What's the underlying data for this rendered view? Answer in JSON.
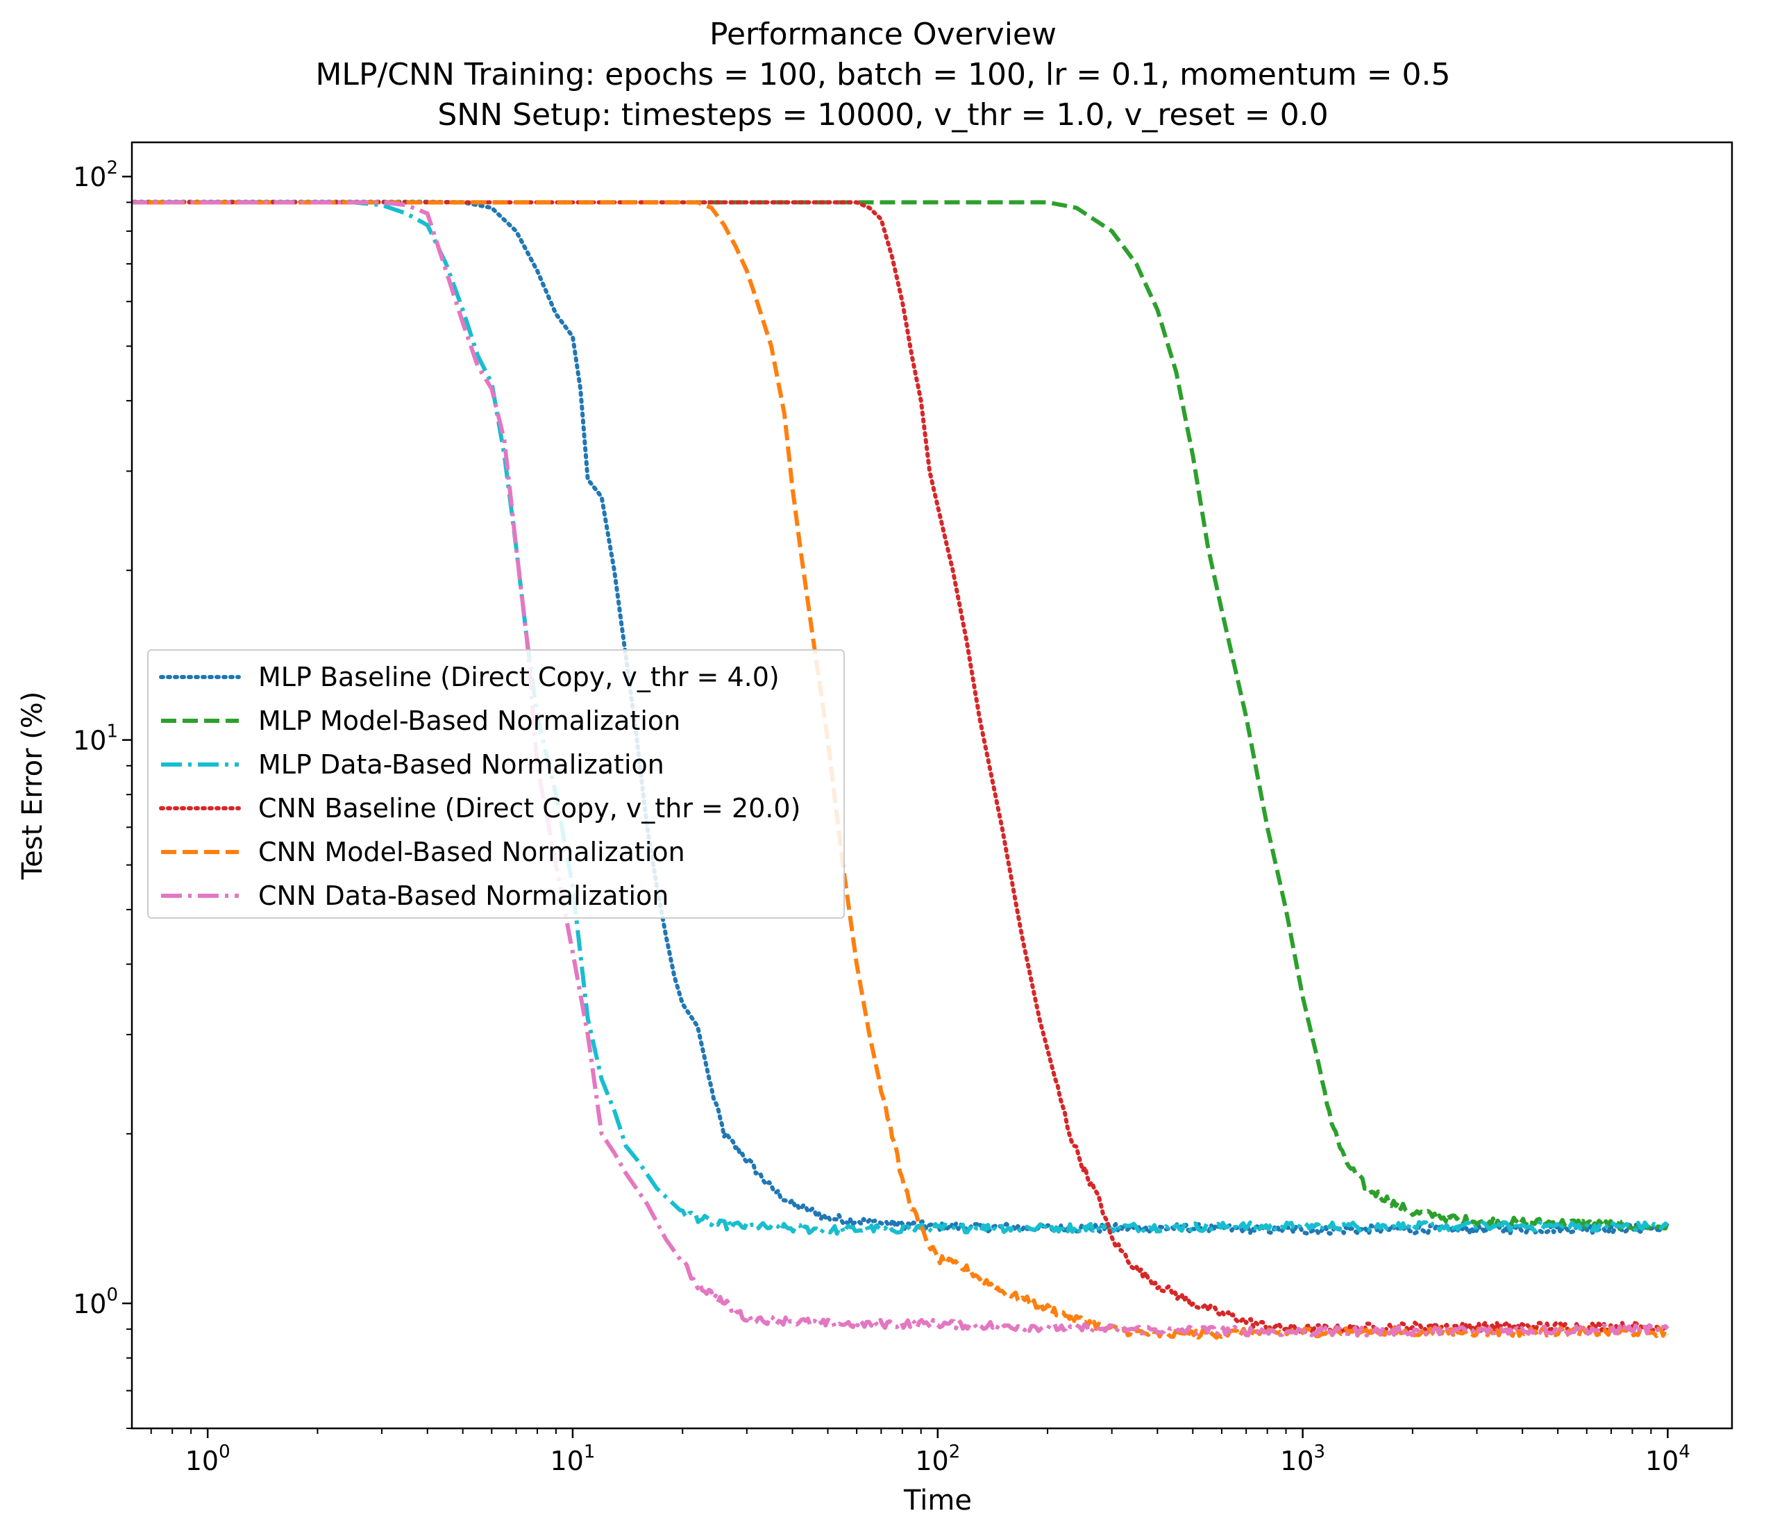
{
  "chart_data": {
    "type": "line",
    "title": "Performance Overview",
    "subtitle_lines": [
      "MLP/CNN Training: epochs = 100, batch = 100, lr = 0.1, momentum = 0.5",
      "SNN Setup: timesteps = 10000, v_thr = 1.0, v_reset = 0.0"
    ],
    "xlabel": "Time",
    "ylabel": "Test Error (%)",
    "xscale": "log",
    "yscale": "log",
    "xlim": [
      0.62,
      15000
    ],
    "ylim": [
      0.6,
      115
    ],
    "xticks": [
      {
        "value": 1,
        "label": "10^0"
      },
      {
        "value": 10,
        "label": "10^1"
      },
      {
        "value": 100,
        "label": "10^2"
      },
      {
        "value": 1000,
        "label": "10^3"
      },
      {
        "value": 10000,
        "label": "10^4"
      }
    ],
    "yticks": [
      {
        "value": 1,
        "label": "10^0"
      },
      {
        "value": 10,
        "label": "10^1"
      },
      {
        "value": 100,
        "label": "10^2"
      }
    ],
    "grid": false,
    "legend_position": "center-left",
    "series": [
      {
        "name": "MLP Baseline (Direct Copy, v_thr = 4.0)",
        "color": "#1f77b4",
        "style": "dotted",
        "points": [
          [
            0.6,
            90.2
          ],
          [
            4,
            90.2
          ],
          [
            5,
            90
          ],
          [
            6,
            88
          ],
          [
            7,
            80
          ],
          [
            8,
            68
          ],
          [
            9,
            57
          ],
          [
            10,
            52
          ],
          [
            10.5,
            42
          ],
          [
            11,
            29
          ],
          [
            12,
            27
          ],
          [
            13,
            20
          ],
          [
            14,
            14
          ],
          [
            15,
            10
          ],
          [
            16,
            7
          ],
          [
            17,
            5.5
          ],
          [
            18,
            4.5
          ],
          [
            19,
            3.8
          ],
          [
            20,
            3.4
          ],
          [
            22,
            3.1
          ],
          [
            24,
            2.4
          ],
          [
            26,
            2.0
          ],
          [
            30,
            1.8
          ],
          [
            35,
            1.6
          ],
          [
            40,
            1.5
          ],
          [
            50,
            1.42
          ],
          [
            60,
            1.4
          ],
          [
            80,
            1.38
          ],
          [
            100,
            1.37
          ],
          [
            200,
            1.36
          ],
          [
            500,
            1.36
          ],
          [
            1000,
            1.35
          ],
          [
            10000,
            1.36
          ]
        ]
      },
      {
        "name": "MLP Model-Based Normalization",
        "color": "#2ca02c",
        "style": "dashed",
        "points": [
          [
            0.6,
            90
          ],
          [
            200,
            90
          ],
          [
            240,
            88
          ],
          [
            300,
            80
          ],
          [
            350,
            70
          ],
          [
            400,
            58
          ],
          [
            450,
            45
          ],
          [
            500,
            32
          ],
          [
            550,
            22
          ],
          [
            600,
            17
          ],
          [
            700,
            11
          ],
          [
            800,
            7
          ],
          [
            900,
            5
          ],
          [
            1000,
            3.5
          ],
          [
            1100,
            2.7
          ],
          [
            1200,
            2.1
          ],
          [
            1300,
            1.8
          ],
          [
            1500,
            1.6
          ],
          [
            1800,
            1.5
          ],
          [
            2000,
            1.45
          ],
          [
            2500,
            1.42
          ],
          [
            3000,
            1.4
          ],
          [
            5000,
            1.39
          ],
          [
            10000,
            1.37
          ]
        ]
      },
      {
        "name": "MLP Data-Based Normalization",
        "color": "#17becf",
        "style": "dashdot",
        "points": [
          [
            0.6,
            90
          ],
          [
            2.5,
            90
          ],
          [
            3,
            89
          ],
          [
            3.5,
            86
          ],
          [
            4,
            82
          ],
          [
            4.5,
            70
          ],
          [
            5,
            58
          ],
          [
            5.5,
            48
          ],
          [
            6,
            43
          ],
          [
            6.5,
            32
          ],
          [
            7,
            22
          ],
          [
            7.5,
            15
          ],
          [
            8,
            11
          ],
          [
            9,
            8
          ],
          [
            10,
            5.5
          ],
          [
            11,
            3.2
          ],
          [
            12,
            2.5
          ],
          [
            13,
            2.2
          ],
          [
            14,
            1.9
          ],
          [
            15,
            1.8
          ],
          [
            17,
            1.6
          ],
          [
            20,
            1.45
          ],
          [
            25,
            1.38
          ],
          [
            30,
            1.37
          ],
          [
            50,
            1.35
          ],
          [
            100,
            1.36
          ],
          [
            1000,
            1.37
          ],
          [
            10000,
            1.37
          ]
        ]
      },
      {
        "name": "CNN Baseline (Direct Copy, v_thr = 20.0)",
        "color": "#d62728",
        "style": "dotted",
        "points": [
          [
            0.6,
            90
          ],
          [
            60,
            90
          ],
          [
            65,
            88
          ],
          [
            70,
            84
          ],
          [
            75,
            72
          ],
          [
            80,
            60
          ],
          [
            85,
            48
          ],
          [
            90,
            40
          ],
          [
            95,
            30
          ],
          [
            100,
            26
          ],
          [
            110,
            20
          ],
          [
            120,
            15
          ],
          [
            130,
            11
          ],
          [
            150,
            7
          ],
          [
            170,
            4.5
          ],
          [
            190,
            3.2
          ],
          [
            210,
            2.5
          ],
          [
            230,
            2.0
          ],
          [
            250,
            1.75
          ],
          [
            280,
            1.5
          ],
          [
            300,
            1.3
          ],
          [
            350,
            1.15
          ],
          [
            400,
            1.08
          ],
          [
            500,
            1.0
          ],
          [
            600,
            0.96
          ],
          [
            700,
            0.93
          ],
          [
            800,
            0.91
          ],
          [
            1000,
            0.9
          ],
          [
            2000,
            0.91
          ],
          [
            10000,
            0.91
          ]
        ]
      },
      {
        "name": "CNN Model-Based Normalization",
        "color": "#ff7f0e",
        "style": "dashed",
        "points": [
          [
            0.6,
            90
          ],
          [
            22,
            90
          ],
          [
            24,
            88
          ],
          [
            26,
            82
          ],
          [
            28,
            75
          ],
          [
            30,
            68
          ],
          [
            32,
            60
          ],
          [
            35,
            50
          ],
          [
            38,
            38
          ],
          [
            40,
            28
          ],
          [
            42,
            22
          ],
          [
            45,
            16
          ],
          [
            50,
            10
          ],
          [
            55,
            6
          ],
          [
            60,
            4
          ],
          [
            65,
            3
          ],
          [
            70,
            2.4
          ],
          [
            75,
            2.0
          ],
          [
            80,
            1.65
          ],
          [
            90,
            1.35
          ],
          [
            100,
            1.2
          ],
          [
            120,
            1.15
          ],
          [
            150,
            1.05
          ],
          [
            200,
            0.98
          ],
          [
            250,
            0.93
          ],
          [
            300,
            0.9
          ],
          [
            400,
            0.88
          ],
          [
            1000,
            0.89
          ],
          [
            10000,
            0.89
          ]
        ]
      },
      {
        "name": "CNN Data-Based Normalization",
        "color": "#e377c2",
        "style": "dashdot",
        "points": [
          [
            0.6,
            90
          ],
          [
            3,
            90
          ],
          [
            3.5,
            89
          ],
          [
            4,
            86
          ],
          [
            4.5,
            68
          ],
          [
            5,
            55
          ],
          [
            5.5,
            46
          ],
          [
            6,
            42
          ],
          [
            6.5,
            34
          ],
          [
            7,
            22
          ],
          [
            7.5,
            15
          ],
          [
            8,
            9
          ],
          [
            9,
            6
          ],
          [
            10,
            4.2
          ],
          [
            11,
            3.0
          ],
          [
            12,
            2.0
          ],
          [
            13,
            1.85
          ],
          [
            14,
            1.7
          ],
          [
            16,
            1.5
          ],
          [
            18,
            1.3
          ],
          [
            20,
            1.18
          ],
          [
            22,
            1.08
          ],
          [
            25,
            1.02
          ],
          [
            28,
            0.97
          ],
          [
            30,
            0.94
          ],
          [
            40,
            0.93
          ],
          [
            50,
            0.92
          ],
          [
            100,
            0.92
          ],
          [
            300,
            0.9
          ],
          [
            1000,
            0.89
          ],
          [
            10000,
            0.9
          ]
        ]
      }
    ]
  }
}
